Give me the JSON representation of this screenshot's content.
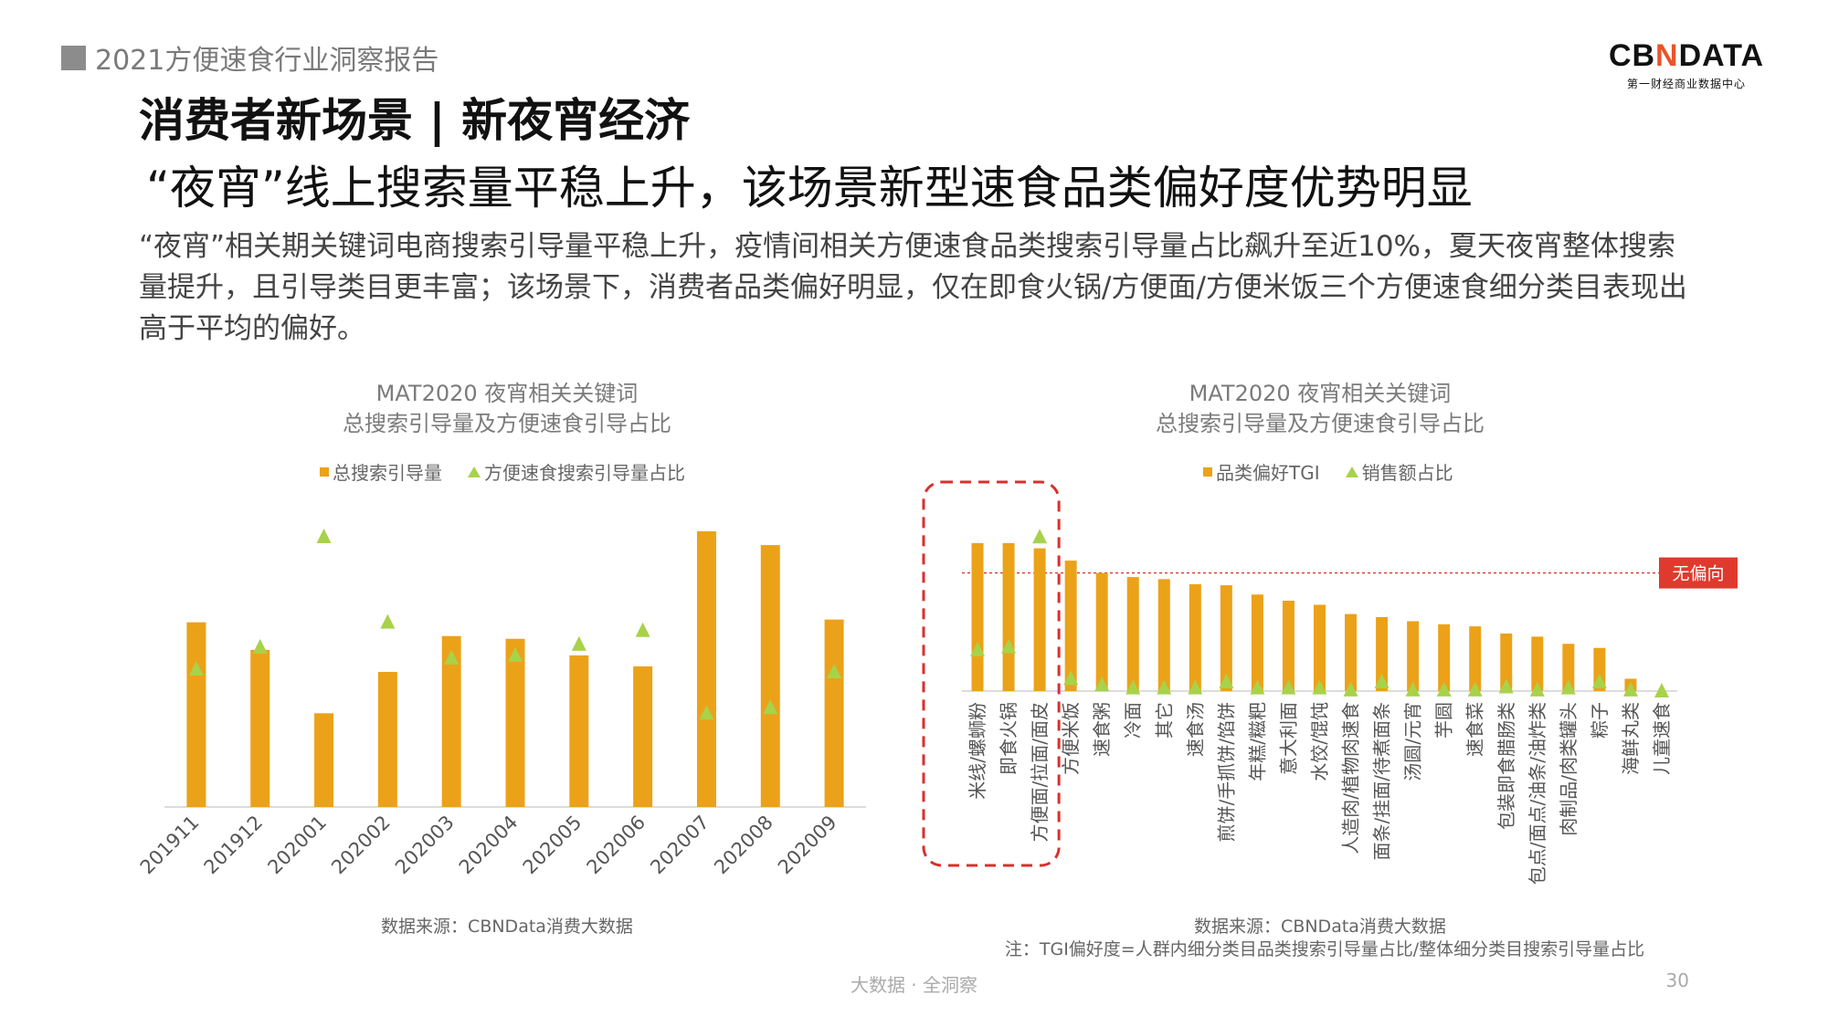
{
  "header": {
    "report_title": "2021方便速食行业洞察报告",
    "logo_main_a": "CB",
    "logo_main_n": "N",
    "logo_main_b": "DATA",
    "logo_sub": "第一财经商业数据中心"
  },
  "section_title": "消费者新场景 | 新夜宵经济",
  "headline": "“夜宵”线上搜索量平稳上升，该场景新型速食品类偏好度优势明显",
  "description": "“夜宵”相关期关键词电商搜索引导量平稳上升，疫情间相关方便速食品类搜索引导量占比飙升至近10%，夏天夜宵整体搜索量提升，且引导类目更丰富；该场景下，消费者品类偏好明显，仅在即食火锅/方便面/方便米饭三个方便速食细分类目表现出高于平均的偏好。",
  "colors": {
    "bar": "#eba219",
    "triangle": "#a8d24a",
    "highlight": "#d9302c",
    "badge": "#e03a2f"
  },
  "chart_data": [
    {
      "type": "bar",
      "title": "MAT2020 夜宵相关关键词\n总搜索引导量及方便速食引导占比",
      "title_lines": [
        "MAT2020 夜宵相关关键词",
        "总搜索引导量及方便速食引导占比"
      ],
      "legend": [
        "总搜索引导量",
        "方便速食搜索引导量占比"
      ],
      "categories": [
        "201911",
        "201912",
        "202001",
        "202002",
        "202003",
        "202004",
        "202005",
        "202006",
        "202007",
        "202008",
        "202009"
      ],
      "series": [
        {
          "name": "总搜索引导量",
          "kind": "bar",
          "values": [
            67,
            57,
            34,
            49,
            62,
            61,
            55,
            51,
            100,
            95,
            68
          ]
        },
        {
          "name": "方便速食搜索引导量占比",
          "kind": "marker",
          "values": [
            50,
            58,
            98,
            67,
            54,
            55,
            59,
            64,
            34,
            36,
            49
          ]
        }
      ],
      "ylim": [
        0,
        100
      ],
      "source": "数据来源：CBNData消费大数据"
    },
    {
      "type": "bar",
      "title": "MAT2020 夜宵相关关键词\n总搜索引导量及方便速食引导占比",
      "title_lines": [
        "MAT2020 夜宵相关关键词",
        "总搜索引导量及方便速食引导占比"
      ],
      "legend": [
        "品类偏好TGI",
        "销售额占比"
      ],
      "categories": [
        "米线/螺蛳粉",
        "即食火锅",
        "方便面/拉面/面皮",
        "方便米饭",
        "速食粥",
        "冷面",
        "其它",
        "速食汤",
        "煎饼/手抓饼/馅饼",
        "年糕/糍粑",
        "意大利面",
        "水饺/馄饨",
        "人造肉/植物肉速食",
        "面条/挂面/待煮面条",
        "汤圆/元宵",
        "芋圆",
        "速食菜",
        "包装即食腊肠类",
        "包点/面点/油条/油炸类",
        "肉制品/肉类罐头",
        "粽子",
        "海鲜丸类",
        "儿童速食"
      ],
      "series": [
        {
          "name": "品类偏好TGI",
          "kind": "bar",
          "values": [
            144,
            144,
            139,
            127,
            115,
            111,
            109,
            104,
            103,
            94,
            88,
            84,
            75,
            72,
            68,
            65,
            63,
            56,
            53,
            46,
            42,
            12,
            0
          ]
        },
        {
          "name": "销售额占比",
          "kind": "marker",
          "values": [
            40,
            43,
            150,
            12,
            6,
            3,
            3,
            3,
            9,
            3,
            3,
            3,
            1,
            9,
            1,
            1,
            1,
            4,
            1,
            3,
            9,
            1,
            0
          ]
        }
      ],
      "reference_line": {
        "label": "无偏向",
        "value": 115
      },
      "highlighted_categories": [
        "米线/螺蛳粉",
        "即食火锅",
        "方便面/拉面/面皮"
      ],
      "ylim": [
        0,
        160
      ],
      "source": "数据来源：CBNData消费大数据",
      "note": "注：TGI偏好度=人群内细分类目品类搜索引导量占比/整体细分类目搜索引导量占比"
    }
  ],
  "footer": {
    "tagline": "大数据 · 全洞察",
    "page": "30"
  }
}
